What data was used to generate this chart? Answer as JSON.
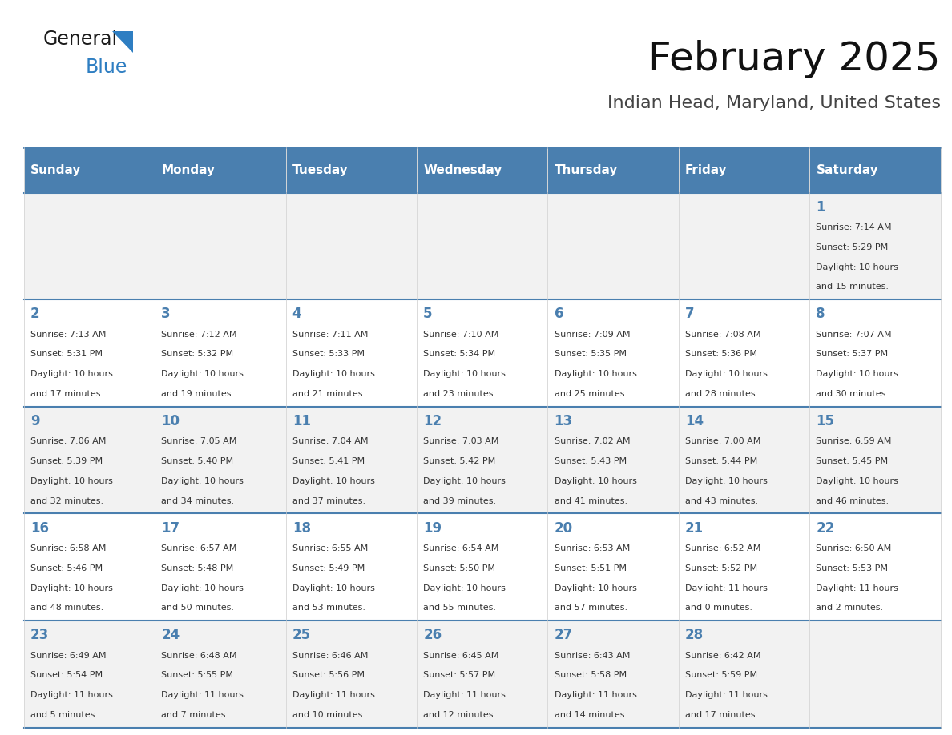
{
  "title": "February 2025",
  "subtitle": "Indian Head, Maryland, United States",
  "header_bg_color": "#4a7faf",
  "header_text_color": "#ffffff",
  "row_bg_even": "#f2f2f2",
  "row_bg_odd": "#ffffff",
  "day_headers": [
    "Sunday",
    "Monday",
    "Tuesday",
    "Wednesday",
    "Thursday",
    "Friday",
    "Saturday"
  ],
  "day_number_color": "#4a7faf",
  "text_color": "#333333",
  "border_color": "#4a7faf",
  "calendar": [
    [
      {
        "day": null,
        "sunrise": null,
        "sunset": null,
        "daylight": null
      },
      {
        "day": null,
        "sunrise": null,
        "sunset": null,
        "daylight": null
      },
      {
        "day": null,
        "sunrise": null,
        "sunset": null,
        "daylight": null
      },
      {
        "day": null,
        "sunrise": null,
        "sunset": null,
        "daylight": null
      },
      {
        "day": null,
        "sunrise": null,
        "sunset": null,
        "daylight": null
      },
      {
        "day": null,
        "sunrise": null,
        "sunset": null,
        "daylight": null
      },
      {
        "day": 1,
        "sunrise": "7:14 AM",
        "sunset": "5:29 PM",
        "daylight": "10 hours and 15 minutes."
      }
    ],
    [
      {
        "day": 2,
        "sunrise": "7:13 AM",
        "sunset": "5:31 PM",
        "daylight": "10 hours and 17 minutes."
      },
      {
        "day": 3,
        "sunrise": "7:12 AM",
        "sunset": "5:32 PM",
        "daylight": "10 hours and 19 minutes."
      },
      {
        "day": 4,
        "sunrise": "7:11 AM",
        "sunset": "5:33 PM",
        "daylight": "10 hours and 21 minutes."
      },
      {
        "day": 5,
        "sunrise": "7:10 AM",
        "sunset": "5:34 PM",
        "daylight": "10 hours and 23 minutes."
      },
      {
        "day": 6,
        "sunrise": "7:09 AM",
        "sunset": "5:35 PM",
        "daylight": "10 hours and 25 minutes."
      },
      {
        "day": 7,
        "sunrise": "7:08 AM",
        "sunset": "5:36 PM",
        "daylight": "10 hours and 28 minutes."
      },
      {
        "day": 8,
        "sunrise": "7:07 AM",
        "sunset": "5:37 PM",
        "daylight": "10 hours and 30 minutes."
      }
    ],
    [
      {
        "day": 9,
        "sunrise": "7:06 AM",
        "sunset": "5:39 PM",
        "daylight": "10 hours and 32 minutes."
      },
      {
        "day": 10,
        "sunrise": "7:05 AM",
        "sunset": "5:40 PM",
        "daylight": "10 hours and 34 minutes."
      },
      {
        "day": 11,
        "sunrise": "7:04 AM",
        "sunset": "5:41 PM",
        "daylight": "10 hours and 37 minutes."
      },
      {
        "day": 12,
        "sunrise": "7:03 AM",
        "sunset": "5:42 PM",
        "daylight": "10 hours and 39 minutes."
      },
      {
        "day": 13,
        "sunrise": "7:02 AM",
        "sunset": "5:43 PM",
        "daylight": "10 hours and 41 minutes."
      },
      {
        "day": 14,
        "sunrise": "7:00 AM",
        "sunset": "5:44 PM",
        "daylight": "10 hours and 43 minutes."
      },
      {
        "day": 15,
        "sunrise": "6:59 AM",
        "sunset": "5:45 PM",
        "daylight": "10 hours and 46 minutes."
      }
    ],
    [
      {
        "day": 16,
        "sunrise": "6:58 AM",
        "sunset": "5:46 PM",
        "daylight": "10 hours and 48 minutes."
      },
      {
        "day": 17,
        "sunrise": "6:57 AM",
        "sunset": "5:48 PM",
        "daylight": "10 hours and 50 minutes."
      },
      {
        "day": 18,
        "sunrise": "6:55 AM",
        "sunset": "5:49 PM",
        "daylight": "10 hours and 53 minutes."
      },
      {
        "day": 19,
        "sunrise": "6:54 AM",
        "sunset": "5:50 PM",
        "daylight": "10 hours and 55 minutes."
      },
      {
        "day": 20,
        "sunrise": "6:53 AM",
        "sunset": "5:51 PM",
        "daylight": "10 hours and 57 minutes."
      },
      {
        "day": 21,
        "sunrise": "6:52 AM",
        "sunset": "5:52 PM",
        "daylight": "11 hours and 0 minutes."
      },
      {
        "day": 22,
        "sunrise": "6:50 AM",
        "sunset": "5:53 PM",
        "daylight": "11 hours and 2 minutes."
      }
    ],
    [
      {
        "day": 23,
        "sunrise": "6:49 AM",
        "sunset": "5:54 PM",
        "daylight": "11 hours and 5 minutes."
      },
      {
        "day": 24,
        "sunrise": "6:48 AM",
        "sunset": "5:55 PM",
        "daylight": "11 hours and 7 minutes."
      },
      {
        "day": 25,
        "sunrise": "6:46 AM",
        "sunset": "5:56 PM",
        "daylight": "11 hours and 10 minutes."
      },
      {
        "day": 26,
        "sunrise": "6:45 AM",
        "sunset": "5:57 PM",
        "daylight": "11 hours and 12 minutes."
      },
      {
        "day": 27,
        "sunrise": "6:43 AM",
        "sunset": "5:58 PM",
        "daylight": "11 hours and 14 minutes."
      },
      {
        "day": 28,
        "sunrise": "6:42 AM",
        "sunset": "5:59 PM",
        "daylight": "11 hours and 17 minutes."
      },
      {
        "day": null,
        "sunrise": null,
        "sunset": null,
        "daylight": null
      }
    ]
  ],
  "logo_general_color": "#1a1a1a",
  "logo_blue_color": "#2e7ec2",
  "logo_triangle_color": "#2e7ec2",
  "title_fontsize": 36,
  "subtitle_fontsize": 16,
  "header_fontsize": 11,
  "day_num_fontsize": 12,
  "cell_text_fontsize": 8
}
